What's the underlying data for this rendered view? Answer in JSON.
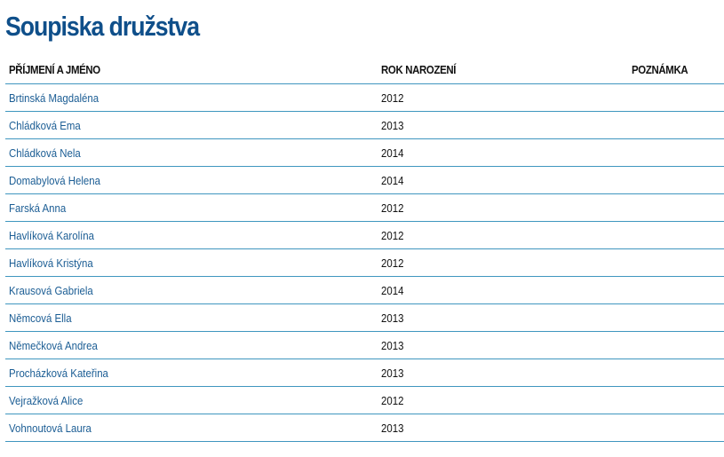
{
  "title": "Soupiska družstva",
  "table": {
    "headers": {
      "name": "PŘÍJMENÍ A JMÉNO",
      "year": "ROK NAROZENÍ",
      "note": "POZNÁMKA"
    },
    "rows": [
      {
        "name": "Brtinská Magdaléna",
        "year": "2012",
        "note": ""
      },
      {
        "name": "Chládková Ema",
        "year": "2013",
        "note": ""
      },
      {
        "name": "Chládková Nela",
        "year": "2014",
        "note": ""
      },
      {
        "name": "Domabylová Helena",
        "year": "2014",
        "note": ""
      },
      {
        "name": "Farská Anna",
        "year": "2012",
        "note": ""
      },
      {
        "name": "Havlíková Karolína",
        "year": "2012",
        "note": ""
      },
      {
        "name": "Havlíková Kristýna",
        "year": "2012",
        "note": ""
      },
      {
        "name": "Krausová Gabriela",
        "year": "2014",
        "note": ""
      },
      {
        "name": "Němcová Ella",
        "year": "2013",
        "note": ""
      },
      {
        "name": "Němečková Andrea",
        "year": "2013",
        "note": ""
      },
      {
        "name": "Procházková Kateřina",
        "year": "2013",
        "note": ""
      },
      {
        "name": "Vejražková Alice",
        "year": "2012",
        "note": ""
      },
      {
        "name": "Vohnoutová Laura",
        "year": "2013",
        "note": ""
      }
    ]
  },
  "colors": {
    "title": "#0f4f8a",
    "name_link": "#1b5d94",
    "row_divider": "#3f96bf"
  }
}
